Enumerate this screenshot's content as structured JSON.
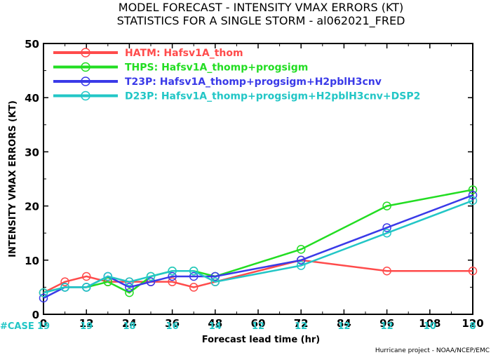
{
  "chart_data": {
    "type": "line",
    "title_line1": "MODEL FORECAST - INTENSITY VMAX ERRORS (KT)",
    "title_line2": "STATISTICS FOR A SINGLE STORM - al062021_FRED",
    "xlabel": "Forecast lead time (hr)",
    "ylabel": "INTENSITY VMAX ERRORS (KT)",
    "xlim": [
      0,
      120
    ],
    "ylim": [
      0,
      50
    ],
    "x_ticks": [
      0,
      12,
      24,
      36,
      48,
      60,
      72,
      84,
      96,
      108,
      120
    ],
    "y_ticks": [
      0,
      10,
      20,
      30,
      40,
      50
    ],
    "x_tick_labels": [
      "0",
      "12",
      "24",
      "36",
      "48",
      "60",
      "72",
      "84",
      "96",
      "108",
      "120"
    ],
    "y_tick_labels": [
      "0",
      "10",
      "20",
      "30",
      "40",
      "50"
    ],
    "case_label": "#CASE",
    "case_counts": [
      "19",
      "19",
      "18",
      "16",
      "14",
      "12",
      "12",
      "12",
      "12",
      "10",
      "8"
    ],
    "credit": "Hurricane project - NOAA/NCEP/EMC",
    "legend_position": "top-left",
    "series": [
      {
        "name": "HATM: Hafsv1A_thom",
        "color": "#ff4b4b",
        "x": [
          0,
          6,
          12,
          18,
          24,
          30,
          36,
          42,
          48,
          72,
          96,
          120
        ],
        "y": [
          4,
          6,
          7,
          6,
          6,
          6,
          6,
          5,
          6,
          10,
          8,
          8
        ]
      },
      {
        "name": "THPS: Hafsv1A_thomp+progsigm",
        "color": "#22dd22",
        "x": [
          0,
          6,
          12,
          18,
          24,
          30,
          36,
          42,
          48,
          72,
          96,
          120
        ],
        "y": [
          4,
          5,
          5,
          6,
          4,
          7,
          8,
          8,
          7,
          12,
          20,
          23
        ]
      },
      {
        "name": "T23P: Hafsv1A_thomp+progsigm+H2pblH3cnv",
        "color": "#3a3ae8",
        "x": [
          0,
          6,
          12,
          18,
          24,
          30,
          36,
          42,
          48,
          72,
          96,
          120
        ],
        "y": [
          3,
          5,
          5,
          7,
          5,
          6,
          7,
          7,
          7,
          10,
          16,
          22
        ]
      },
      {
        "name": "D23P: Hafsv1A_thomp+progsigm+H2pblH3cnv+DSP2",
        "color": "#22c6c6",
        "x": [
          0,
          6,
          12,
          18,
          24,
          30,
          36,
          42,
          48,
          72,
          96,
          120
        ],
        "y": [
          4,
          5,
          5,
          7,
          6,
          7,
          8,
          8,
          6,
          9,
          15,
          21
        ]
      }
    ]
  }
}
